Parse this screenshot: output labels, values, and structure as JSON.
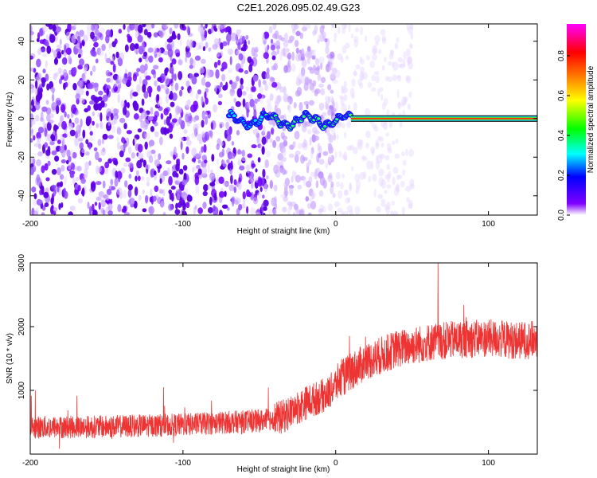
{
  "title": "C2E1.2026.095.02.49.G23",
  "chart_data": [
    {
      "type": "heatmap",
      "xlabel": "Height of straight line (km)",
      "ylabel": "Frequency (Hz)",
      "xlim": [
        -200,
        132
      ],
      "ylim": [
        -50,
        49
      ],
      "xticks": [
        -200,
        -100,
        0,
        100
      ],
      "yticks": [
        -40,
        -20,
        0,
        20,
        40
      ],
      "colorbar": {
        "label": "Normalized spectral amplitude",
        "range": [
          0,
          0.96
        ],
        "ticks": [
          "0.0",
          "0.2",
          "0.4",
          "0.6",
          "0.8"
        ],
        "colors": [
          "#ffffff",
          "#8000ff",
          "#0000ff",
          "#00ffff",
          "#00ff00",
          "#ffff00",
          "#ff8000",
          "#ff0000",
          "#ff00ff"
        ]
      },
      "features": {
        "noise_region_x": [
          -200,
          10
        ],
        "signal_start_x": -70,
        "carrier_x": [
          10,
          132
        ],
        "carrier_freq": 0,
        "carrier_amplitude": 0.85
      }
    },
    {
      "type": "line",
      "xlabel": "Height of straight line (km)",
      "ylabel": "SNR (10 * v/v)",
      "xlim": [
        -200,
        132
      ],
      "ylim": [
        0,
        3000
      ],
      "xticks": [
        -200,
        -100,
        0,
        100
      ],
      "yticks": [
        1000,
        2000,
        3000
      ],
      "series": [
        {
          "name": "SNR",
          "color": "#ee3333",
          "mean_profile": {
            "x": [
              -200,
              -150,
              -100,
              -70,
              -50,
              -35,
              -20,
              -5,
              0,
              10,
              20,
              40,
              60,
              80,
              100,
              120,
              132
            ],
            "y": [
              420,
              430,
              460,
              500,
              520,
              580,
              800,
              950,
              1100,
              1300,
              1450,
              1650,
              1750,
              1800,
              1820,
              1780,
              1800
            ]
          },
          "spread": 300,
          "peak": {
            "x": 67,
            "y": 3000
          }
        }
      ]
    }
  ]
}
